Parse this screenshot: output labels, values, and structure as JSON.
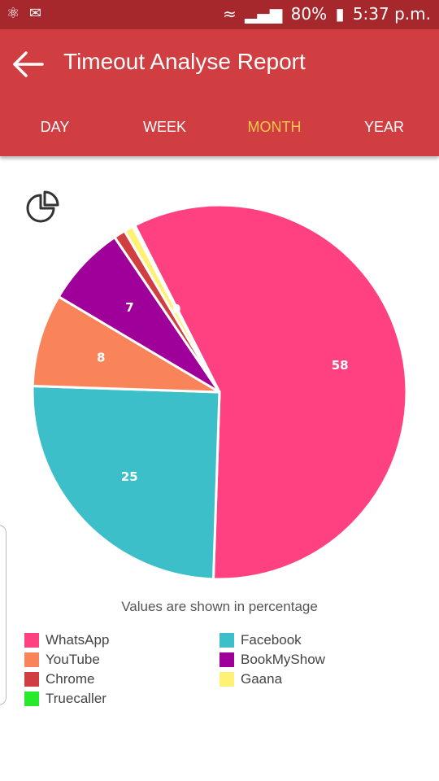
{
  "status_bar": {
    "left_icons": [
      "notification-icon",
      "mail-icon"
    ],
    "battery": "80%",
    "time": "5:37 p.m."
  },
  "app_bar": {
    "title": "Timeout Analyse Report"
  },
  "tabs": [
    {
      "label": "DAY",
      "active": false
    },
    {
      "label": "WEEK",
      "active": false
    },
    {
      "label": "MONTH",
      "active": true
    },
    {
      "label": "YEAR",
      "active": false
    }
  ],
  "chart_caption": "Values are shown in percentage",
  "chart_data": {
    "type": "pie",
    "slices": [
      {
        "name": "WhatsApp",
        "value": 58,
        "label": "58",
        "color": "#ff4081"
      },
      {
        "name": "Facebook",
        "value": 25,
        "label": "25",
        "color": "#3dbfc9"
      },
      {
        "name": "YouTube",
        "value": 8,
        "label": "8",
        "color": "#f9845a"
      },
      {
        "name": "BookMyShow",
        "value": 7,
        "label": "7",
        "color": "#a0009a"
      },
      {
        "name": "Chrome",
        "value": 1,
        "label": "",
        "color": "#d13e41"
      },
      {
        "name": "Gaana",
        "value": 0.8,
        "label": "",
        "color": "#fff176"
      },
      {
        "name": "Truecaller",
        "value": 0.2,
        "label": "0",
        "color": "#26ea2a"
      }
    ],
    "legend": [
      {
        "name": "WhatsApp",
        "color": "#ff4081"
      },
      {
        "name": "Facebook",
        "color": "#3dbfc9"
      },
      {
        "name": "YouTube",
        "color": "#f9845a"
      },
      {
        "name": "BookMyShow",
        "color": "#a0009a"
      },
      {
        "name": "Chrome",
        "color": "#d13e41"
      },
      {
        "name": "Gaana",
        "color": "#fff176"
      },
      {
        "name": "Truecaller",
        "color": "#26ea2a"
      }
    ]
  }
}
